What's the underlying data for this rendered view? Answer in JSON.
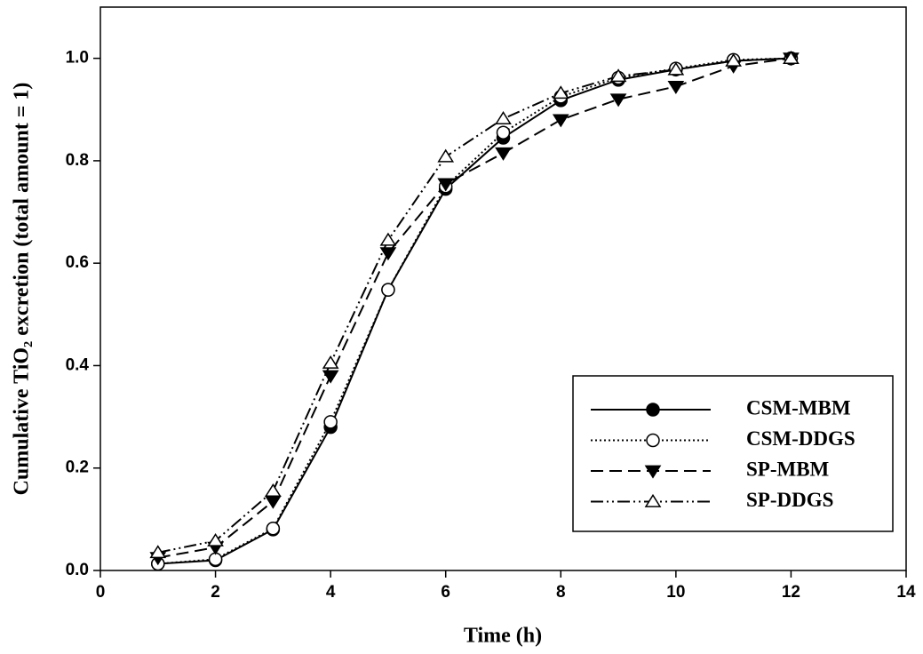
{
  "chart_data": {
    "type": "line",
    "x_label": "Time (h)",
    "y_label": "Cumulative TiO₂ excretion (total amount = 1)",
    "x": [
      1,
      2,
      3,
      4,
      5,
      6,
      7,
      8,
      9,
      10,
      11,
      12
    ],
    "series": [
      {
        "name": "CSM-MBM",
        "color": "#000000",
        "marker": "circle-filled",
        "dash": "solid",
        "values": [
          0.013,
          0.02,
          0.08,
          0.28,
          0.548,
          0.745,
          0.845,
          0.918,
          0.958,
          0.978,
          0.995,
          1.0
        ]
      },
      {
        "name": "CSM-DDGS",
        "color": "#000000",
        "marker": "circle-open",
        "dash": "dotted",
        "values": [
          0.013,
          0.022,
          0.082,
          0.29,
          0.548,
          0.75,
          0.855,
          0.925,
          0.962,
          0.98,
          0.997,
          1.0
        ]
      },
      {
        "name": "SP-MBM",
        "color": "#000000",
        "marker": "triangle-down-filled",
        "dash": "dashed",
        "values": [
          0.025,
          0.045,
          0.135,
          0.38,
          0.62,
          0.755,
          0.815,
          0.88,
          0.92,
          0.945,
          0.985,
          1.0
        ]
      },
      {
        "name": "SP-DDGS",
        "color": "#000000",
        "marker": "triangle-up-open",
        "dash": "dash-dot-dot",
        "values": [
          0.035,
          0.058,
          0.155,
          0.405,
          0.645,
          0.808,
          0.882,
          0.932,
          0.965,
          0.978,
          0.995,
          1.0
        ]
      }
    ],
    "xlim": [
      0,
      14
    ],
    "xticks": [
      0,
      2,
      4,
      6,
      8,
      10,
      12,
      14
    ],
    "ylim": [
      0,
      1.1
    ],
    "yticks": [
      {
        "value": 0,
        "label": "0.0"
      },
      {
        "value": 0.2,
        "label": "0.2"
      },
      {
        "value": 0.4,
        "label": "0.4"
      },
      {
        "value": 0.6,
        "label": "0.6"
      },
      {
        "value": 0.8,
        "label": "0.8"
      },
      {
        "value": 1.0,
        "label": "1.0"
      }
    ],
    "grid": false,
    "legend_position": "lower right"
  }
}
